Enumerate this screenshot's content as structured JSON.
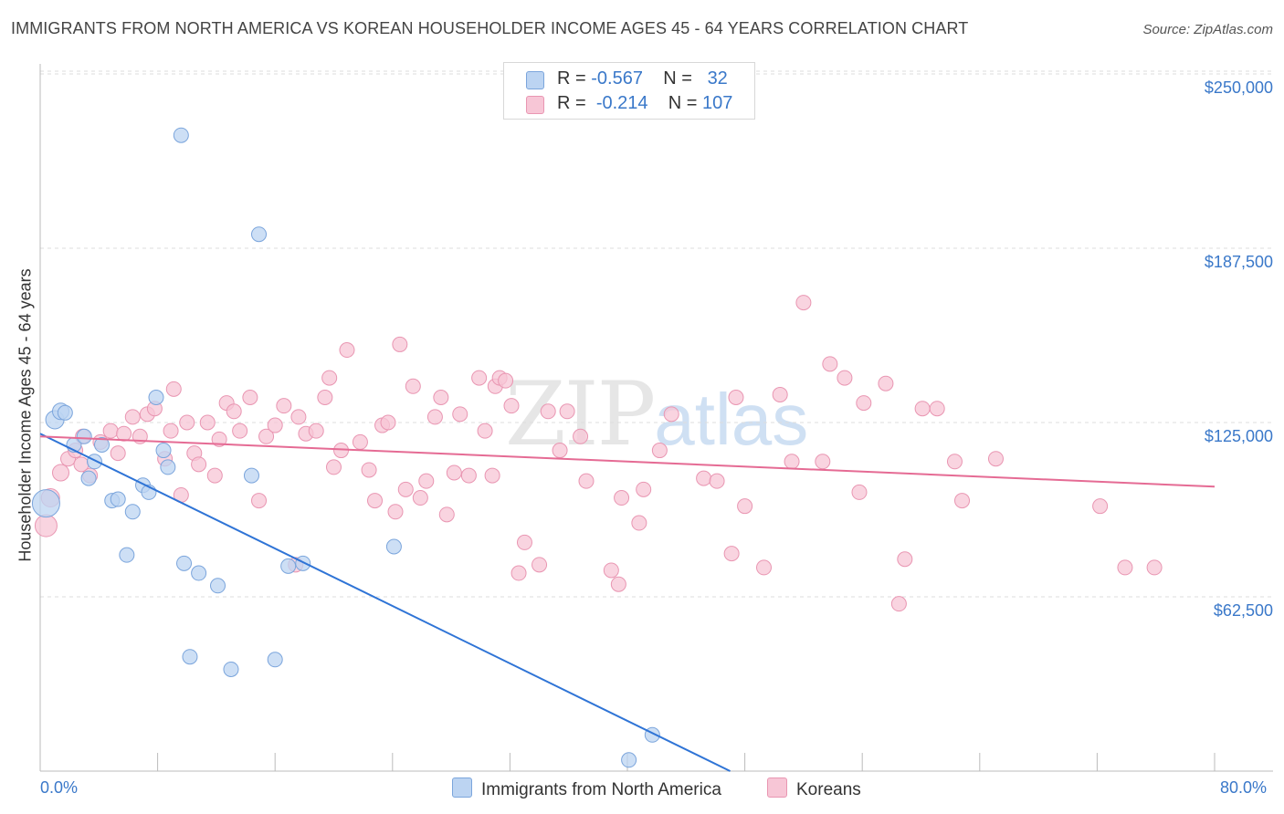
{
  "title": "IMMIGRANTS FROM NORTH AMERICA VS KOREAN HOUSEHOLDER INCOME AGES 45 - 64 YEARS CORRELATION CHART",
  "source": "Source: ZipAtlas.com",
  "watermark": {
    "zip": "ZIP",
    "atlas": "atlas"
  },
  "legend": {
    "rows": [
      {
        "r_label": "R =",
        "r_value": "-0.567",
        "n_label": "N =",
        "n_value": "32"
      },
      {
        "r_label": "R =",
        "r_value": "-0.214",
        "n_label": "N =",
        "n_value": "107"
      }
    ]
  },
  "bottom_legend": {
    "series1": "Immigrants from North America",
    "series2": "Koreans"
  },
  "colors": {
    "blue_fill": "#bcd4f2",
    "blue_stroke": "#7ba5dc",
    "blue_line": "#2f74d6",
    "pink_fill": "#f7c6d6",
    "pink_stroke": "#e996b2",
    "pink_line": "#e56b94",
    "tick_text": "#3a78c9",
    "grid": "#dddddd"
  },
  "chart_data": {
    "type": "scatter",
    "title": "IMMIGRANTS FROM NORTH AMERICA VS KOREAN HOUSEHOLDER INCOME AGES 45 - 64 YEARS CORRELATION CHART",
    "xlabel": "",
    "ylabel": "Householder Income Ages 45 - 64 years",
    "xlim": [
      0,
      80
    ],
    "ylim": [
      0,
      262000
    ],
    "x_tick_labels": {
      "min": "0.0%",
      "max": "80.0%"
    },
    "y_ticks": [
      {
        "value": 62500,
        "label": "$62,500"
      },
      {
        "value": 125000,
        "label": "$125,000"
      },
      {
        "value": 187500,
        "label": "$187,500"
      },
      {
        "value": 250000,
        "label": "$250,000"
      }
    ],
    "series": [
      {
        "name": "Immigrants from North America",
        "color": "blue",
        "trend": {
          "x0": 0,
          "y0": 121000,
          "x1": 47,
          "y1": 0
        },
        "points": [
          [
            1.0,
            126000,
            10
          ],
          [
            1.4,
            129000,
            9
          ],
          [
            1.7,
            128500,
            8
          ],
          [
            2.3,
            117000,
            8
          ],
          [
            3.0,
            120000,
            8
          ],
          [
            4.2,
            117000,
            8
          ],
          [
            3.3,
            105000,
            8
          ],
          [
            3.7,
            111000,
            8
          ],
          [
            4.9,
            97000,
            8
          ],
          [
            5.3,
            97500,
            8
          ],
          [
            7.0,
            102500,
            8
          ],
          [
            7.4,
            100000,
            8
          ],
          [
            6.3,
            93000,
            8
          ],
          [
            7.9,
            134000,
            8
          ],
          [
            8.4,
            115000,
            8
          ],
          [
            8.7,
            109000,
            8
          ],
          [
            5.9,
            77500,
            8
          ],
          [
            9.6,
            228000,
            8
          ],
          [
            14.9,
            192500,
            8
          ],
          [
            14.4,
            106000,
            8
          ],
          [
            9.8,
            74500,
            8
          ],
          [
            10.8,
            71000,
            8
          ],
          [
            12.1,
            66500,
            8
          ],
          [
            10.2,
            41000,
            8
          ],
          [
            13.0,
            36500,
            8
          ],
          [
            16.0,
            40000,
            8
          ],
          [
            16.9,
            73500,
            8
          ],
          [
            17.9,
            74500,
            8
          ],
          [
            24.1,
            80500,
            8
          ],
          [
            41.7,
            13000,
            8
          ],
          [
            40.1,
            4000,
            8
          ],
          [
            0.4,
            96000,
            15
          ]
        ]
      },
      {
        "name": "Koreans",
        "color": "pink",
        "trend": {
          "x0": 0,
          "y0": 120000,
          "x1": 80,
          "y1": 102000
        },
        "points": [
          [
            0.4,
            88000,
            12
          ],
          [
            0.7,
            98000,
            10
          ],
          [
            1.4,
            107000,
            9
          ],
          [
            1.9,
            112000,
            8
          ],
          [
            2.4,
            115000,
            8
          ],
          [
            2.9,
            120000,
            8
          ],
          [
            3.4,
            106000,
            8
          ],
          [
            4.1,
            118000,
            8
          ],
          [
            4.8,
            122000,
            8
          ],
          [
            5.3,
            114000,
            8
          ],
          [
            5.7,
            121000,
            8
          ],
          [
            6.3,
            127000,
            8
          ],
          [
            6.8,
            120000,
            8
          ],
          [
            7.3,
            128000,
            8
          ],
          [
            7.8,
            130000,
            8
          ],
          [
            8.5,
            112000,
            8
          ],
          [
            8.9,
            122000,
            8
          ],
          [
            9.6,
            99000,
            8
          ],
          [
            10.0,
            125000,
            8
          ],
          [
            10.5,
            114000,
            8
          ],
          [
            10.8,
            110000,
            8
          ],
          [
            11.4,
            125000,
            8
          ],
          [
            11.9,
            106000,
            8
          ],
          [
            12.2,
            119000,
            8
          ],
          [
            12.7,
            132000,
            8
          ],
          [
            13.2,
            129000,
            8
          ],
          [
            13.6,
            122000,
            8
          ],
          [
            14.3,
            134000,
            8
          ],
          [
            14.9,
            97000,
            8
          ],
          [
            15.4,
            120000,
            8
          ],
          [
            16.0,
            124000,
            8
          ],
          [
            16.6,
            131000,
            8
          ],
          [
            17.4,
            74000,
            8
          ],
          [
            17.6,
            127000,
            8
          ],
          [
            18.1,
            121000,
            8
          ],
          [
            18.8,
            122000,
            8
          ],
          [
            19.4,
            134000,
            8
          ],
          [
            19.7,
            141000,
            8
          ],
          [
            20.0,
            109000,
            8
          ],
          [
            20.5,
            115000,
            8
          ],
          [
            20.9,
            151000,
            8
          ],
          [
            21.8,
            118000,
            8
          ],
          [
            22.4,
            108000,
            8
          ],
          [
            22.8,
            97000,
            8
          ],
          [
            23.3,
            124000,
            8
          ],
          [
            23.7,
            125000,
            8
          ],
          [
            24.2,
            93000,
            8
          ],
          [
            24.5,
            153000,
            8
          ],
          [
            24.9,
            101000,
            8
          ],
          [
            25.4,
            138000,
            8
          ],
          [
            25.9,
            98000,
            8
          ],
          [
            26.3,
            104000,
            8
          ],
          [
            26.9,
            127000,
            8
          ],
          [
            27.3,
            134000,
            8
          ],
          [
            27.7,
            92000,
            8
          ],
          [
            28.2,
            107000,
            8
          ],
          [
            28.6,
            128000,
            8
          ],
          [
            29.2,
            106000,
            8
          ],
          [
            29.9,
            141000,
            8
          ],
          [
            30.3,
            122000,
            8
          ],
          [
            30.8,
            106000,
            8
          ],
          [
            31.0,
            138000,
            8
          ],
          [
            31.3,
            141000,
            8
          ],
          [
            31.7,
            140000,
            8
          ],
          [
            32.1,
            131000,
            8
          ],
          [
            33.0,
            82000,
            8
          ],
          [
            32.6,
            71000,
            8
          ],
          [
            34.0,
            74000,
            8
          ],
          [
            34.6,
            129000,
            8
          ],
          [
            35.4,
            115000,
            8
          ],
          [
            35.9,
            129000,
            8
          ],
          [
            36.8,
            120000,
            8
          ],
          [
            37.2,
            104000,
            8
          ],
          [
            38.9,
            72000,
            8
          ],
          [
            39.4,
            67000,
            8
          ],
          [
            39.6,
            98000,
            8
          ],
          [
            40.8,
            89000,
            8
          ],
          [
            41.1,
            101000,
            8
          ],
          [
            42.2,
            115000,
            8
          ],
          [
            43.0,
            128000,
            8
          ],
          [
            45.2,
            105000,
            8
          ],
          [
            46.1,
            104000,
            8
          ],
          [
            47.1,
            78000,
            8
          ],
          [
            47.4,
            134000,
            8
          ],
          [
            48.0,
            95000,
            8
          ],
          [
            49.3,
            73000,
            8
          ],
          [
            50.4,
            135000,
            8
          ],
          [
            51.2,
            111000,
            8
          ],
          [
            52.0,
            168000,
            8
          ],
          [
            53.3,
            111000,
            8
          ],
          [
            53.8,
            146000,
            8
          ],
          [
            54.8,
            141000,
            8
          ],
          [
            55.8,
            100000,
            8
          ],
          [
            56.1,
            132000,
            8
          ],
          [
            57.6,
            139000,
            8
          ],
          [
            58.5,
            60000,
            8
          ],
          [
            58.9,
            76000,
            8
          ],
          [
            60.1,
            130000,
            8
          ],
          [
            61.1,
            130000,
            8
          ],
          [
            62.3,
            111000,
            8
          ],
          [
            62.8,
            97000,
            8
          ],
          [
            65.1,
            112000,
            8
          ],
          [
            72.2,
            95000,
            8
          ],
          [
            73.9,
            73000,
            8
          ],
          [
            75.9,
            73000,
            8
          ],
          [
            2.8,
            110000,
            8
          ],
          [
            9.1,
            137000,
            8
          ]
        ]
      }
    ]
  }
}
